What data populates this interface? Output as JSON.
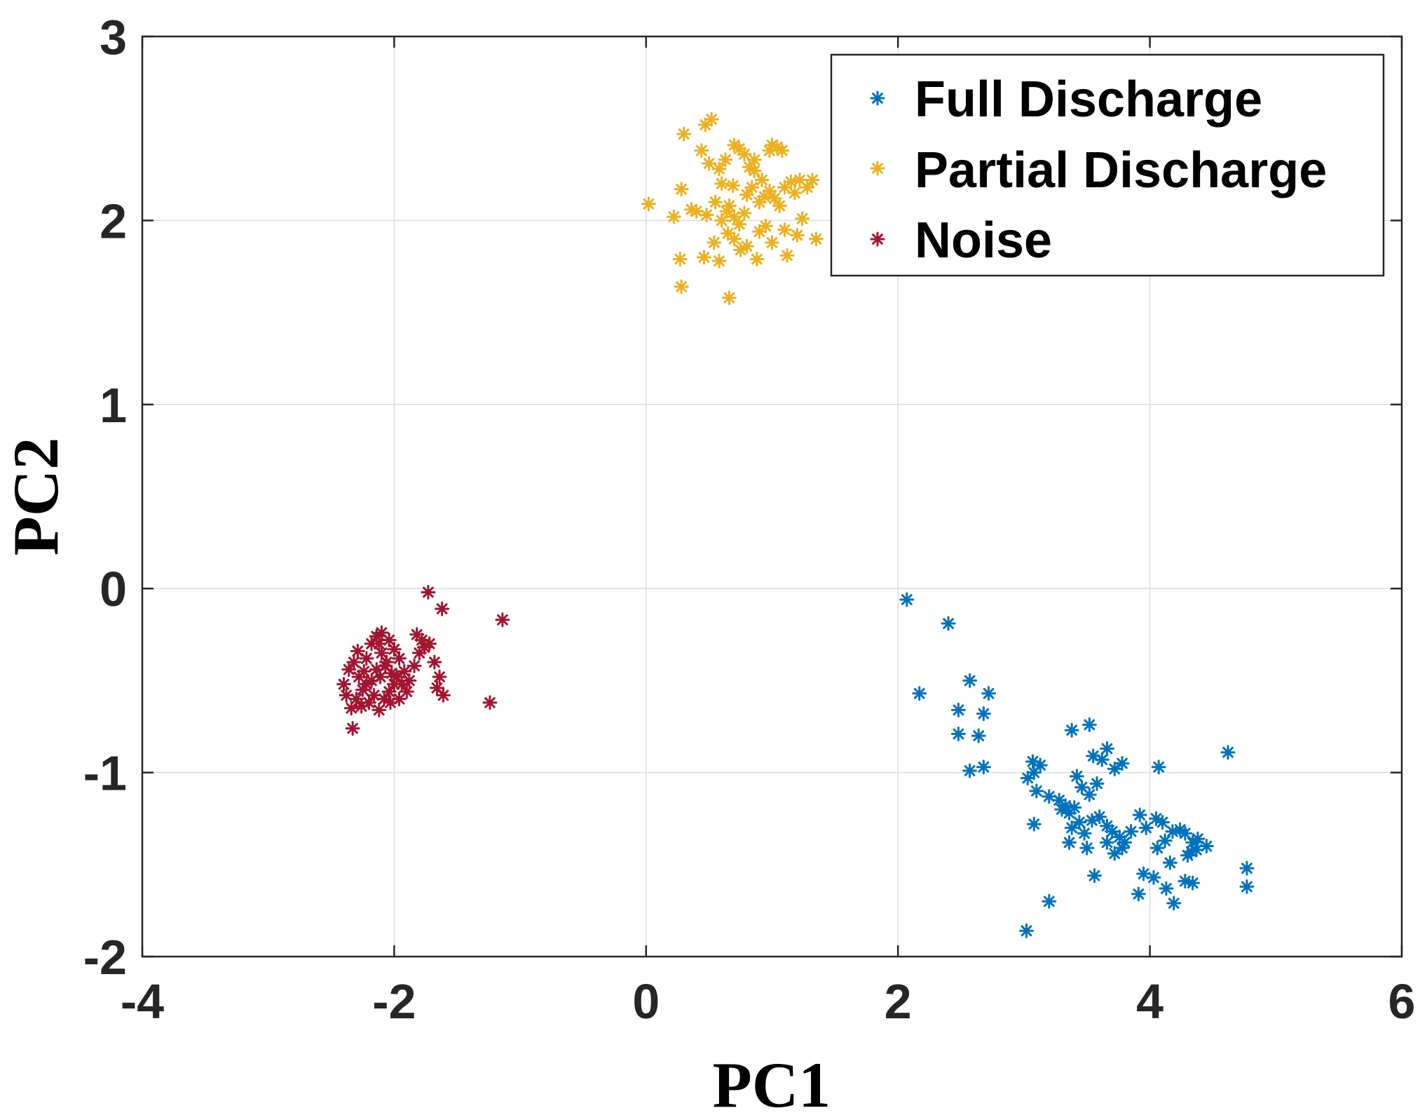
{
  "chart_data": {
    "type": "scatter",
    "title": "",
    "xlabel": "PC1",
    "ylabel": "PC2",
    "xlim": [
      -4,
      6
    ],
    "ylim": [
      -2,
      3
    ],
    "xticks": [
      -4,
      -2,
      0,
      2,
      4,
      6
    ],
    "yticks": [
      -2,
      -1,
      0,
      1,
      2,
      3
    ],
    "xtick_labels": [
      "-4",
      "-2",
      "0",
      "2",
      "4",
      "6"
    ],
    "ytick_labels": [
      "-2",
      "-1",
      "0",
      "1",
      "2",
      "3"
    ],
    "grid": true,
    "legend_position": "top-right",
    "marker": "asterisk",
    "series": [
      {
        "name": "Full Discharge",
        "color": "#0072BD",
        "points": [
          [
            2.07,
            -0.06
          ],
          [
            2.4,
            -0.19
          ],
          [
            2.17,
            -0.57
          ],
          [
            2.57,
            -0.5
          ],
          [
            2.72,
            -0.57
          ],
          [
            2.48,
            -0.66
          ],
          [
            2.68,
            -0.68
          ],
          [
            2.48,
            -0.79
          ],
          [
            2.64,
            -0.8
          ],
          [
            2.57,
            -0.99
          ],
          [
            2.68,
            -0.97
          ],
          [
            3.07,
            -0.94
          ],
          [
            3.13,
            -0.96
          ],
          [
            3.08,
            -1.0
          ],
          [
            3.03,
            -1.03
          ],
          [
            3.38,
            -0.77
          ],
          [
            3.52,
            -0.74
          ],
          [
            3.42,
            -1.02
          ],
          [
            3.55,
            -0.91
          ],
          [
            3.62,
            -0.93
          ],
          [
            3.66,
            -0.87
          ],
          [
            3.72,
            -0.98
          ],
          [
            3.78,
            -0.95
          ],
          [
            4.07,
            -0.97
          ],
          [
            4.62,
            -0.89
          ],
          [
            3.1,
            -1.1
          ],
          [
            3.2,
            -1.13
          ],
          [
            3.28,
            -1.15
          ],
          [
            3.33,
            -1.18
          ],
          [
            3.36,
            -1.22
          ],
          [
            3.3,
            -1.2
          ],
          [
            3.4,
            -1.19
          ],
          [
            3.46,
            -1.08
          ],
          [
            3.52,
            -1.12
          ],
          [
            3.58,
            -1.06
          ],
          [
            3.38,
            -1.3
          ],
          [
            3.44,
            -1.27
          ],
          [
            3.48,
            -1.33
          ],
          [
            3.54,
            -1.26
          ],
          [
            3.6,
            -1.24
          ],
          [
            3.66,
            -1.29
          ],
          [
            3.7,
            -1.32
          ],
          [
            3.76,
            -1.35
          ],
          [
            3.8,
            -1.38
          ],
          [
            3.85,
            -1.32
          ],
          [
            3.92,
            -1.23
          ],
          [
            3.97,
            -1.3
          ],
          [
            4.05,
            -1.25
          ],
          [
            4.1,
            -1.27
          ],
          [
            4.12,
            -1.37
          ],
          [
            4.18,
            -1.32
          ],
          [
            4.24,
            -1.31
          ],
          [
            4.28,
            -1.33
          ],
          [
            4.34,
            -1.38
          ],
          [
            4.38,
            -1.36
          ],
          [
            4.45,
            -1.4
          ],
          [
            3.36,
            -1.38
          ],
          [
            3.5,
            -1.41
          ],
          [
            3.66,
            -1.38
          ],
          [
            3.72,
            -1.44
          ],
          [
            3.78,
            -1.41
          ],
          [
            4.33,
            -1.43
          ],
          [
            4.37,
            -1.42
          ],
          [
            4.3,
            -1.45
          ],
          [
            4.16,
            -1.49
          ],
          [
            4.06,
            -1.41
          ],
          [
            3.08,
            -1.28
          ],
          [
            3.56,
            -1.56
          ],
          [
            3.95,
            -1.55
          ],
          [
            4.03,
            -1.57
          ],
          [
            4.28,
            -1.59
          ],
          [
            4.34,
            -1.6
          ],
          [
            4.13,
            -1.63
          ],
          [
            4.77,
            -1.52
          ],
          [
            4.77,
            -1.62
          ],
          [
            3.91,
            -1.66
          ],
          [
            4.19,
            -1.71
          ],
          [
            3.2,
            -1.7
          ],
          [
            3.02,
            -1.86
          ]
        ]
      },
      {
        "name": "Partial Discharge",
        "color": "#EDB120",
        "points": [
          [
            0.02,
            2.09
          ],
          [
            0.22,
            2.02
          ],
          [
            0.3,
            2.47
          ],
          [
            0.47,
            2.52
          ],
          [
            0.52,
            2.55
          ],
          [
            0.28,
            2.17
          ],
          [
            0.44,
            2.38
          ],
          [
            0.5,
            2.31
          ],
          [
            0.63,
            2.33
          ],
          [
            0.7,
            2.41
          ],
          [
            0.74,
            2.39
          ],
          [
            0.78,
            2.36
          ],
          [
            0.82,
            2.29
          ],
          [
            0.86,
            2.33
          ],
          [
            0.98,
            2.38
          ],
          [
            1.0,
            2.41
          ],
          [
            1.04,
            2.4
          ],
          [
            1.08,
            2.38
          ],
          [
            0.4,
            2.05
          ],
          [
            0.48,
            2.03
          ],
          [
            0.55,
            2.1
          ],
          [
            0.6,
            2.0
          ],
          [
            0.64,
            2.05
          ],
          [
            0.66,
            2.08
          ],
          [
            0.7,
            2.02
          ],
          [
            0.74,
            1.98
          ],
          [
            0.78,
            2.04
          ],
          [
            0.8,
            2.14
          ],
          [
            0.84,
            2.18
          ],
          [
            0.9,
            2.1
          ],
          [
            0.94,
            2.13
          ],
          [
            0.98,
            2.16
          ],
          [
            1.02,
            2.12
          ],
          [
            1.06,
            2.08
          ],
          [
            1.1,
            2.18
          ],
          [
            1.15,
            2.21
          ],
          [
            1.18,
            2.15
          ],
          [
            1.22,
            2.22
          ],
          [
            1.28,
            2.18
          ],
          [
            1.32,
            2.22
          ],
          [
            1.24,
            2.01
          ],
          [
            0.86,
            2.27
          ],
          [
            0.92,
            2.22
          ],
          [
            0.6,
            2.2
          ],
          [
            0.65,
            1.93
          ],
          [
            0.7,
            1.9
          ],
          [
            0.8,
            1.86
          ],
          [
            0.9,
            1.94
          ],
          [
            0.95,
            1.97
          ],
          [
            1.0,
            1.88
          ],
          [
            1.1,
            1.95
          ],
          [
            1.2,
            1.92
          ],
          [
            1.35,
            1.9
          ],
          [
            0.27,
            1.79
          ],
          [
            0.46,
            1.8
          ],
          [
            0.58,
            1.78
          ],
          [
            0.75,
            1.84
          ],
          [
            0.88,
            1.79
          ],
          [
            1.12,
            1.81
          ],
          [
            0.54,
            1.88
          ],
          [
            0.28,
            1.64
          ],
          [
            0.66,
            1.58
          ],
          [
            0.36,
            2.06
          ],
          [
            0.58,
            2.28
          ],
          [
            0.69,
            2.19
          ]
        ]
      },
      {
        "name": "Noise",
        "color": "#A2142F",
        "points": [
          [
            -1.73,
            -0.02
          ],
          [
            -1.62,
            -0.11
          ],
          [
            -1.14,
            -0.17
          ],
          [
            -1.24,
            -0.62
          ],
          [
            -2.33,
            -0.76
          ],
          [
            -2.4,
            -0.52
          ],
          [
            -2.36,
            -0.44
          ],
          [
            -2.32,
            -0.4
          ],
          [
            -2.28,
            -0.48
          ],
          [
            -2.25,
            -0.55
          ],
          [
            -2.22,
            -0.38
          ],
          [
            -2.18,
            -0.3
          ],
          [
            -2.14,
            -0.26
          ],
          [
            -2.1,
            -0.35
          ],
          [
            -2.07,
            -0.42
          ],
          [
            -2.04,
            -0.28
          ],
          [
            -2.0,
            -0.33
          ],
          [
            -1.96,
            -0.38
          ],
          [
            -1.92,
            -0.45
          ],
          [
            -1.88,
            -0.5
          ],
          [
            -1.84,
            -0.42
          ],
          [
            -1.8,
            -0.35
          ],
          [
            -1.76,
            -0.32
          ],
          [
            -1.72,
            -0.3
          ],
          [
            -1.68,
            -0.4
          ],
          [
            -1.64,
            -0.48
          ],
          [
            -1.61,
            -0.58
          ],
          [
            -1.66,
            -0.54
          ],
          [
            -2.3,
            -0.6
          ],
          [
            -2.26,
            -0.64
          ],
          [
            -2.2,
            -0.62
          ],
          [
            -2.16,
            -0.58
          ],
          [
            -2.12,
            -0.66
          ],
          [
            -2.08,
            -0.6
          ],
          [
            -2.04,
            -0.56
          ],
          [
            -2.0,
            -0.52
          ],
          [
            -1.96,
            -0.6
          ],
          [
            -1.9,
            -0.56
          ],
          [
            -2.34,
            -0.65
          ],
          [
            -2.24,
            -0.45
          ],
          [
            -2.18,
            -0.5
          ],
          [
            -2.14,
            -0.44
          ],
          [
            -2.11,
            -0.48
          ],
          [
            -2.06,
            -0.4
          ],
          [
            -2.02,
            -0.46
          ],
          [
            -1.98,
            -0.48
          ],
          [
            -1.94,
            -0.52
          ],
          [
            -2.29,
            -0.34
          ],
          [
            -2.12,
            -0.3
          ],
          [
            -1.82,
            -0.25
          ],
          [
            -2.38,
            -0.58
          ],
          [
            -2.1,
            -0.24
          ],
          [
            -1.78,
            -0.28
          ],
          [
            -2.03,
            -0.62
          ],
          [
            -2.22,
            -0.52
          ]
        ]
      }
    ]
  }
}
